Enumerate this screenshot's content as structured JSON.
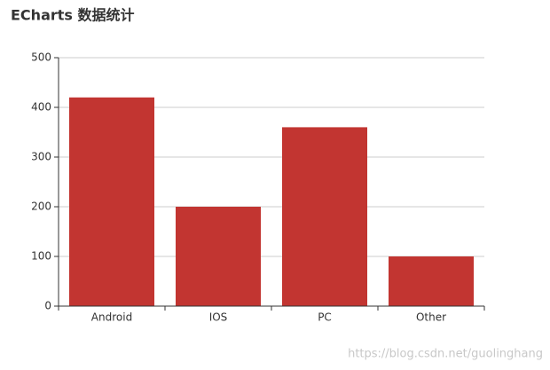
{
  "chart_data": {
    "type": "bar",
    "title": "ECharts 数据统计",
    "categories": [
      "Android",
      "IOS",
      "PC",
      "Other"
    ],
    "values": [
      420,
      200,
      360,
      100
    ],
    "color": "#c23531",
    "ylim": [
      0,
      500
    ],
    "yticks": [
      0,
      100,
      200,
      300,
      400,
      500
    ],
    "grid": true
  },
  "watermark": "https://blog.csdn.net/guolinghang"
}
